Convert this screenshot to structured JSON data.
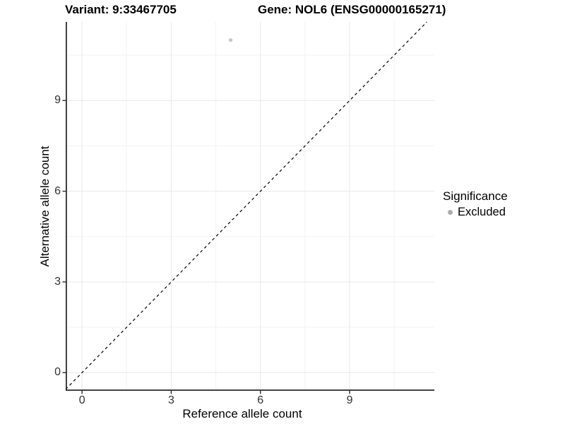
{
  "titles": {
    "variant": "Variant: 9:33467705",
    "gene": "Gene: NOL6 (ENSG00000165271)"
  },
  "axes": {
    "x_label": "Reference allele count",
    "y_label": "Alternative allele count"
  },
  "legend": {
    "title": "Significance",
    "items": [
      {
        "label": "Excluded",
        "color": "#adadad"
      }
    ]
  },
  "colors": {
    "background": "#ffffff",
    "grid_major": "#e8e8e8",
    "grid_minor": "#f3f3f3",
    "axis_line": "#2a2a2a",
    "tick_label": "#303030",
    "dashed_line": "#000000",
    "point": "#c6c6c6"
  },
  "chart_data": {
    "type": "scatter",
    "title": "Variant: 9:33467705   Gene: NOL6 (ENSG00000165271)",
    "xlabel": "Reference allele count",
    "ylabel": "Alternative allele count",
    "xlim": [
      -0.55,
      11.85
    ],
    "ylim": [
      -0.6,
      11.6
    ],
    "x_ticks": [
      0,
      3,
      6,
      9
    ],
    "y_ticks": [
      0,
      3,
      6,
      9
    ],
    "x_minor_ticks": [
      1.5,
      4.5,
      7.5,
      10.5
    ],
    "y_minor_ticks": [
      1.5,
      4.5,
      7.5,
      10.5
    ],
    "grid": true,
    "legend_position": "right",
    "legend_title": "Significance",
    "reference_line": {
      "type": "identity y=x",
      "style": "dashed",
      "color": "#000000"
    },
    "series": [
      {
        "name": "Excluded",
        "color": "#c6c6c6",
        "points": [
          {
            "x": 5,
            "y": 11
          }
        ]
      }
    ]
  }
}
